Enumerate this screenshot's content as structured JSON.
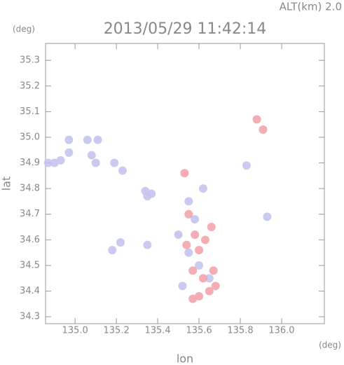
{
  "chart_data": {
    "type": "scatter",
    "title": "2013/05/29 11:42:14",
    "annotation": "ALT(km) 2.0",
    "y_unit": "(deg)",
    "x_unit": "(deg)",
    "xlabel": "lon",
    "ylabel": "lat",
    "xlim": [
      134.857,
      136.207
    ],
    "ylim": [
      34.273,
      35.366
    ],
    "xticks": [
      {
        "value": 135.0,
        "label": "135.0"
      },
      135.2,
      135.4,
      135.6,
      135.8,
      {
        "value": 136.0,
        "label": "136.0"
      }
    ],
    "yticks": [
      34.3,
      34.4,
      34.5,
      34.6,
      34.7,
      34.8,
      34.9,
      {
        "value": 35.0,
        "label": "35.0"
      },
      35.1,
      35.2,
      35.3
    ],
    "series": [
      {
        "color": "#c4c4ee",
        "x": [
          134.87,
          134.9,
          134.93,
          134.97,
          134.97,
          135.06,
          135.08,
          135.11,
          135.1,
          135.19,
          135.23,
          135.34,
          135.37,
          135.35,
          135.18,
          135.22,
          135.35,
          135.55,
          135.58,
          135.5,
          135.55,
          135.6,
          135.52,
          135.65,
          135.93,
          135.83,
          135.62
        ],
        "values": [
          34.9,
          34.9,
          34.91,
          34.99,
          34.94,
          34.99,
          34.93,
          34.99,
          34.9,
          34.9,
          34.87,
          34.79,
          34.78,
          34.77,
          34.56,
          34.59,
          34.58,
          34.75,
          34.68,
          34.62,
          34.55,
          34.5,
          34.42,
          34.45,
          34.69,
          34.89,
          34.8
        ]
      },
      {
        "color": "#f4a4ac",
        "x": [
          135.88,
          135.91,
          135.55,
          135.58,
          135.63,
          135.6,
          135.57,
          135.62,
          135.67,
          135.68,
          135.65,
          135.6,
          135.57,
          135.53,
          135.66,
          135.54
        ],
        "values": [
          35.07,
          35.03,
          34.7,
          34.62,
          34.6,
          34.56,
          34.48,
          34.45,
          34.48,
          34.42,
          34.4,
          34.38,
          34.37,
          34.86,
          34.65,
          34.58
        ]
      }
    ]
  }
}
